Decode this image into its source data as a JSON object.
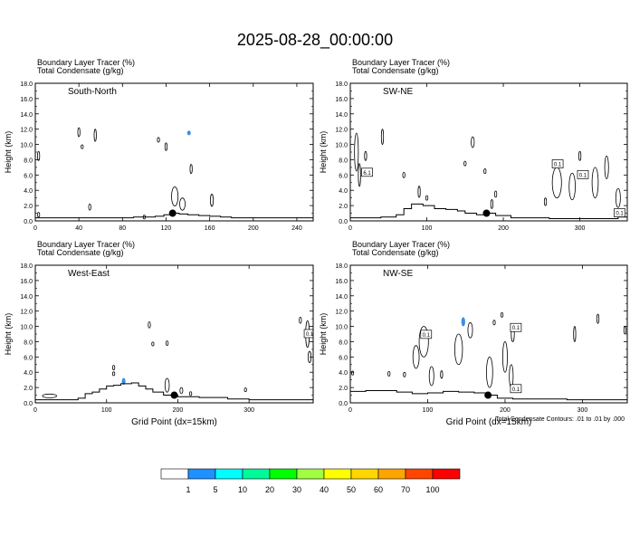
{
  "title": "2025-08-28_00:00:00",
  "axis_common": {
    "ylabel": "Height (km)",
    "xlabel": "Grid Point (dx=15km)",
    "yticks": [
      "0.0",
      "2.0",
      "4.0",
      "6.0",
      "8.0",
      "10.0",
      "12.0",
      "14.0",
      "16.0",
      "18.0"
    ]
  },
  "footer_note": "Total Condensate Contours: .01 to .01 by .000",
  "colorbar": {
    "colors": [
      "#ffffff",
      "#1e90ff",
      "#00ffff",
      "#00fa9a",
      "#00ff00",
      "#a0ff40",
      "#ffff00",
      "#ffd700",
      "#ffa500",
      "#ff4500",
      "#ff0000"
    ],
    "labels": [
      "1",
      "5",
      "10",
      "20",
      "30",
      "40",
      "50",
      "60",
      "70",
      "100"
    ]
  },
  "colors": {
    "tracer": "#3a8ee6",
    "contour": "#000000",
    "marker": "#000000"
  },
  "chart_data": [
    {
      "type": "contour",
      "header_line1": "Boundary Layer Tracer   (%)",
      "header_line2": "Total Condensate   (g/kg)",
      "label": "South-North",
      "xlim": [
        0,
        255
      ],
      "ylim": [
        0,
        18
      ],
      "xticks": [
        "0",
        "40",
        "80",
        "120",
        "160",
        "200",
        "240"
      ],
      "xtick_values": [
        0,
        40,
        80,
        120,
        160,
        200,
        240
      ],
      "show_xlabel": false,
      "marker": {
        "x": 126,
        "y": 1.0
      },
      "terrain": [
        [
          0,
          0.4
        ],
        [
          60,
          0.4
        ],
        [
          90,
          0.5
        ],
        [
          100,
          0.5
        ],
        [
          110,
          0.6
        ],
        [
          118,
          0.8
        ],
        [
          125,
          1.0
        ],
        [
          132,
          0.9
        ],
        [
          140,
          0.8
        ],
        [
          150,
          0.7
        ],
        [
          160,
          0.6
        ],
        [
          170,
          0.5
        ],
        [
          180,
          0.4
        ],
        [
          255,
          0.4
        ]
      ],
      "cloud_blobs": [
        {
          "x": 3,
          "y": 8.5,
          "w": 2,
          "h": 1.2
        },
        {
          "x": 3,
          "y": 0.8,
          "w": 1.5,
          "h": 0.6
        },
        {
          "x": 40,
          "y": 11.6,
          "w": 1.5,
          "h": 1.2
        },
        {
          "x": 55,
          "y": 11.2,
          "w": 1.5,
          "h": 1.6
        },
        {
          "x": 43,
          "y": 9.7,
          "w": 1,
          "h": 0.5
        },
        {
          "x": 50,
          "y": 1.8,
          "w": 1.2,
          "h": 0.8
        },
        {
          "x": 113,
          "y": 10.6,
          "w": 1,
          "h": 0.6
        },
        {
          "x": 120,
          "y": 9.7,
          "w": 1.2,
          "h": 1.0
        },
        {
          "x": 100,
          "y": 0.5,
          "w": 1.5,
          "h": 0.5
        },
        {
          "x": 128,
          "y": 3.2,
          "w": 6,
          "h": 2.5
        },
        {
          "x": 135,
          "y": 2.2,
          "w": 5,
          "h": 1.6
        },
        {
          "x": 143,
          "y": 6.8,
          "w": 2,
          "h": 1.2
        },
        {
          "x": 162,
          "y": 2.7,
          "w": 2.5,
          "h": 1.6
        }
      ],
      "tracer_blobs": [
        {
          "x": 141,
          "y": 11.5,
          "w": 1.2,
          "h": 0.6
        }
      ],
      "boxed_labels": []
    },
    {
      "type": "contour",
      "header_line1": "Boundary Layer Tracer   (%)",
      "header_line2": "Total Condensate   (g/kg)",
      "label": "SW-NE",
      "xlim": [
        0,
        362
      ],
      "ylim": [
        0,
        18
      ],
      "xticks": [
        "0",
        "100",
        "200",
        "300"
      ],
      "xtick_values": [
        0,
        100,
        200,
        300
      ],
      "show_xlabel": false,
      "marker": {
        "x": 178,
        "y": 1.0
      },
      "terrain": [
        [
          0,
          0.4
        ],
        [
          40,
          0.5
        ],
        [
          60,
          0.8
        ],
        [
          70,
          1.6
        ],
        [
          80,
          2.2
        ],
        [
          95,
          2.0
        ],
        [
          110,
          1.6
        ],
        [
          125,
          1.5
        ],
        [
          140,
          1.3
        ],
        [
          150,
          1.0
        ],
        [
          165,
          0.8
        ],
        [
          178,
          1.0
        ],
        [
          190,
          0.7
        ],
        [
          210,
          0.4
        ],
        [
          260,
          0.3
        ],
        [
          330,
          0.3
        ],
        [
          350,
          0.5
        ],
        [
          362,
          1.3
        ]
      ],
      "cloud_blobs": [
        {
          "x": 8,
          "y": 9.0,
          "w": 5,
          "h": 5
        },
        {
          "x": 12,
          "y": 6.0,
          "w": 3,
          "h": 3
        },
        {
          "x": 42,
          "y": 11.0,
          "w": 2,
          "h": 2
        },
        {
          "x": 20,
          "y": 8.5,
          "w": 2,
          "h": 1.2
        },
        {
          "x": 90,
          "y": 3.8,
          "w": 2,
          "h": 1.5
        },
        {
          "x": 70,
          "y": 6.0,
          "w": 1.5,
          "h": 0.7
        },
        {
          "x": 100,
          "y": 3.0,
          "w": 1.5,
          "h": 0.6
        },
        {
          "x": 160,
          "y": 10.3,
          "w": 4,
          "h": 1.4
        },
        {
          "x": 176,
          "y": 6.5,
          "w": 1.5,
          "h": 0.6
        },
        {
          "x": 150,
          "y": 7.5,
          "w": 1.5,
          "h": 0.6
        },
        {
          "x": 190,
          "y": 3.5,
          "w": 2,
          "h": 0.8
        },
        {
          "x": 185,
          "y": 2.2,
          "w": 2,
          "h": 1.2
        },
        {
          "x": 270,
          "y": 5.0,
          "w": 12,
          "h": 4
        },
        {
          "x": 290,
          "y": 4.5,
          "w": 8,
          "h": 3.5
        },
        {
          "x": 320,
          "y": 5.0,
          "w": 8,
          "h": 4
        },
        {
          "x": 335,
          "y": 7.0,
          "w": 5,
          "h": 3
        },
        {
          "x": 350,
          "y": 3.0,
          "w": 6,
          "h": 2.5
        },
        {
          "x": 300,
          "y": 8.5,
          "w": 2,
          "h": 1.2
        },
        {
          "x": 255,
          "y": 2.5,
          "w": 2,
          "h": 1.0
        }
      ],
      "tracer_blobs": [],
      "boxed_labels": [
        {
          "x": 22,
          "y": 6.3,
          "text": "6.1"
        },
        {
          "x": 271,
          "y": 7.4,
          "text": "0.1"
        },
        {
          "x": 304,
          "y": 6.0,
          "text": "0.1"
        },
        {
          "x": 352,
          "y": 1.0,
          "text": "0.1"
        }
      ]
    },
    {
      "type": "contour",
      "header_line1": "Boundary Layer Tracer   (%)",
      "header_line2": "Total Condensate   (g/kg)",
      "label": "West-East",
      "xlim": [
        0,
        390
      ],
      "ylim": [
        0,
        18
      ],
      "xticks": [
        "0",
        "100",
        "200",
        "300"
      ],
      "xtick_values": [
        0,
        100,
        200,
        300
      ],
      "show_xlabel": true,
      "marker": {
        "x": 195,
        "y": 1.0
      },
      "terrain": [
        [
          0,
          0.4
        ],
        [
          40,
          0.4
        ],
        [
          60,
          0.6
        ],
        [
          70,
          1.2
        ],
        [
          80,
          1.4
        ],
        [
          90,
          1.8
        ],
        [
          100,
          2.2
        ],
        [
          110,
          2.3
        ],
        [
          120,
          2.5
        ],
        [
          135,
          2.6
        ],
        [
          145,
          2.2
        ],
        [
          155,
          1.8
        ],
        [
          165,
          1.4
        ],
        [
          180,
          1.0
        ],
        [
          200,
          0.8
        ],
        [
          230,
          0.7
        ],
        [
          270,
          0.5
        ],
        [
          300,
          0.4
        ],
        [
          390,
          0.4
        ]
      ],
      "cloud_blobs": [
        {
          "x": 20,
          "y": 0.9,
          "w": 20,
          "h": 0.5
        },
        {
          "x": 110,
          "y": 4.6,
          "w": 1.5,
          "h": 0.6
        },
        {
          "x": 110,
          "y": 3.8,
          "w": 1.5,
          "h": 0.5
        },
        {
          "x": 160,
          "y": 10.2,
          "w": 1,
          "h": 0.8
        },
        {
          "x": 165,
          "y": 7.7,
          "w": 1,
          "h": 0.5
        },
        {
          "x": 185,
          "y": 7.8,
          "w": 1.5,
          "h": 0.6
        },
        {
          "x": 185,
          "y": 2.3,
          "w": 6,
          "h": 1.8
        },
        {
          "x": 205,
          "y": 1.6,
          "w": 4,
          "h": 0.8
        },
        {
          "x": 218,
          "y": 1.2,
          "w": 1.5,
          "h": 0.5
        },
        {
          "x": 295,
          "y": 1.7,
          "w": 1.5,
          "h": 0.5
        },
        {
          "x": 382,
          "y": 9.0,
          "w": 5,
          "h": 3.5
        },
        {
          "x": 372,
          "y": 10.8,
          "w": 2,
          "h": 0.8
        },
        {
          "x": 385,
          "y": 6.0,
          "w": 4,
          "h": 1.5
        }
      ],
      "tracer_blobs": [
        {
          "x": 124,
          "y": 2.8,
          "w": 2.5,
          "h": 0.9
        }
      ],
      "boxed_labels": [
        {
          "x": 385,
          "y": 9.0,
          "text": "0.1"
        }
      ]
    },
    {
      "type": "contour",
      "header_line1": "Boundary Layer Tracer   (%)",
      "header_line2": "Total Condensate   (g/kg)",
      "label": "NW-SE",
      "xlim": [
        0,
        358
      ],
      "ylim": [
        0,
        18
      ],
      "xticks": [
        "0",
        "100",
        "200",
        "300"
      ],
      "xtick_values": [
        0,
        100,
        200,
        300
      ],
      "show_xlabel": true,
      "marker": {
        "x": 178,
        "y": 1.0
      },
      "terrain": [
        [
          0,
          1.5
        ],
        [
          20,
          1.6
        ],
        [
          40,
          1.6
        ],
        [
          60,
          1.4
        ],
        [
          80,
          1.2
        ],
        [
          100,
          1.3
        ],
        [
          120,
          1.5
        ],
        [
          140,
          1.4
        ],
        [
          160,
          1.3
        ],
        [
          178,
          1.0
        ],
        [
          190,
          0.6
        ],
        [
          210,
          0.5
        ],
        [
          240,
          0.5
        ],
        [
          280,
          0.4
        ],
        [
          358,
          0.4
        ]
      ],
      "cloud_blobs": [
        {
          "x": 95,
          "y": 8.0,
          "w": 12,
          "h": 4
        },
        {
          "x": 85,
          "y": 6.0,
          "w": 8,
          "h": 3
        },
        {
          "x": 140,
          "y": 7.0,
          "w": 10,
          "h": 4
        },
        {
          "x": 155,
          "y": 9.5,
          "w": 6,
          "h": 2
        },
        {
          "x": 105,
          "y": 3.5,
          "w": 6,
          "h": 2.5
        },
        {
          "x": 118,
          "y": 3.7,
          "w": 2,
          "h": 1.0
        },
        {
          "x": 50,
          "y": 3.8,
          "w": 1.5,
          "h": 0.6
        },
        {
          "x": 70,
          "y": 3.7,
          "w": 1.5,
          "h": 0.6
        },
        {
          "x": 180,
          "y": 4.0,
          "w": 8,
          "h": 4
        },
        {
          "x": 200,
          "y": 6.0,
          "w": 6,
          "h": 4
        },
        {
          "x": 210,
          "y": 9.0,
          "w": 4,
          "h": 2
        },
        {
          "x": 208,
          "y": 3.5,
          "w": 5,
          "h": 3
        },
        {
          "x": 186,
          "y": 10.5,
          "w": 1,
          "h": 0.6
        },
        {
          "x": 196,
          "y": 11.5,
          "w": 1,
          "h": 0.6
        },
        {
          "x": 290,
          "y": 9.0,
          "w": 2,
          "h": 2
        },
        {
          "x": 320,
          "y": 11.0,
          "w": 2,
          "h": 1.2
        },
        {
          "x": 355,
          "y": 9.5,
          "w": 2,
          "h": 1.0
        },
        {
          "x": 3,
          "y": 3.9,
          "w": 1,
          "h": 0.5
        }
      ],
      "tracer_blobs": [
        {
          "x": 146,
          "y": 10.6,
          "w": 5,
          "h": 1.2
        }
      ],
      "boxed_labels": [
        {
          "x": 98,
          "y": 8.9,
          "text": "0.1"
        },
        {
          "x": 214,
          "y": 9.8,
          "text": "0.1"
        },
        {
          "x": 214,
          "y": 1.8,
          "text": "0.1"
        }
      ]
    }
  ]
}
